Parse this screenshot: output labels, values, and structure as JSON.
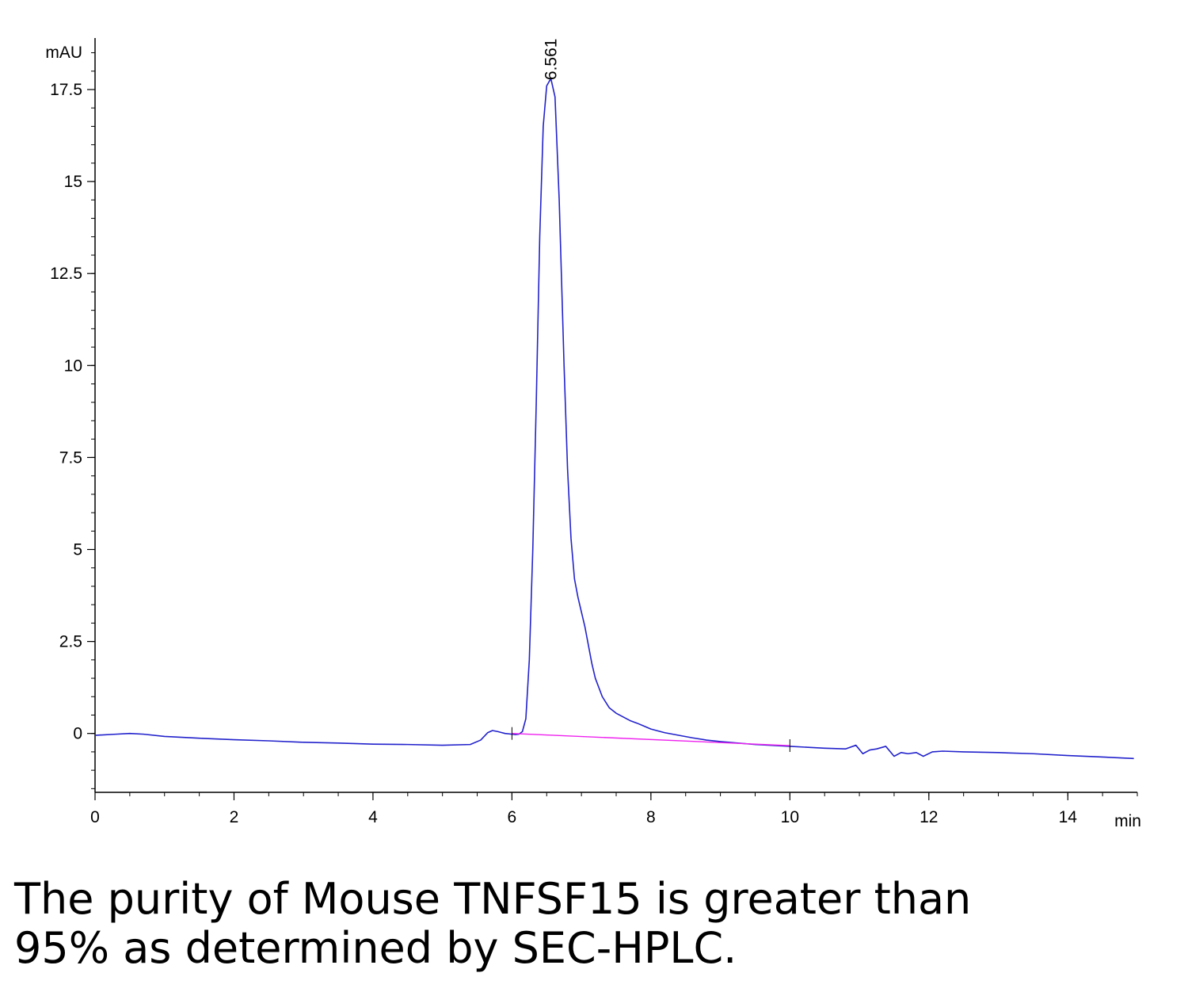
{
  "chart_data": {
    "type": "line",
    "title": "",
    "xlabel": "min",
    "ylabel": "mAU",
    "xlim": [
      0,
      15
    ],
    "ylim": [
      -1.6,
      18.9
    ],
    "x_ticks": [
      0,
      2,
      4,
      6,
      8,
      10,
      12,
      14
    ],
    "y_ticks": [
      0,
      2.5,
      5,
      7.5,
      10,
      12.5,
      15,
      17.5
    ],
    "x_tick_labels": [
      "0",
      "2",
      "4",
      "6",
      "8",
      "10",
      "12",
      "14"
    ],
    "y_tick_labels": [
      "0",
      "2.5",
      "5",
      "7.5",
      "10",
      "12.5",
      "15",
      "17.5"
    ],
    "grid": false,
    "series": [
      {
        "color": "#2222cc",
        "x": [
          0,
          0.3,
          0.5,
          0.7,
          1.0,
          1.5,
          2.0,
          2.5,
          3.0,
          3.5,
          4.0,
          4.5,
          5.0,
          5.4,
          5.55,
          5.65,
          5.72,
          5.8,
          5.9,
          6.0,
          6.05,
          6.1,
          6.15,
          6.2,
          6.25,
          6.3,
          6.35,
          6.4,
          6.45,
          6.5,
          6.56,
          6.62,
          6.68,
          6.75,
          6.8,
          6.85,
          6.9,
          6.95,
          7.0,
          7.05,
          7.1,
          7.15,
          7.2,
          7.3,
          7.4,
          7.5,
          7.6,
          7.7,
          7.8,
          7.9,
          8.0,
          8.2,
          8.4,
          8.6,
          8.8,
          9.0,
          9.5,
          10.0,
          10.5,
          10.8,
          10.95,
          11.05,
          11.15,
          11.25,
          11.38,
          11.5,
          11.6,
          11.7,
          11.82,
          11.92,
          12.05,
          12.2,
          12.5,
          13.0,
          13.5,
          14.0,
          14.5,
          14.95
        ],
        "y": [
          -0.05,
          -0.02,
          0.0,
          -0.02,
          -0.08,
          -0.13,
          -0.17,
          -0.2,
          -0.24,
          -0.26,
          -0.29,
          -0.3,
          -0.32,
          -0.3,
          -0.18,
          0.02,
          0.08,
          0.05,
          0.0,
          -0.02,
          -0.03,
          -0.02,
          0.05,
          0.4,
          2.0,
          5.0,
          9.0,
          13.5,
          16.5,
          17.6,
          17.8,
          17.3,
          14.5,
          10.0,
          7.2,
          5.3,
          4.2,
          3.7,
          3.3,
          2.9,
          2.4,
          1.9,
          1.5,
          1.0,
          0.7,
          0.55,
          0.45,
          0.35,
          0.28,
          0.2,
          0.12,
          0.02,
          -0.05,
          -0.12,
          -0.18,
          -0.22,
          -0.3,
          -0.35,
          -0.4,
          -0.42,
          -0.32,
          -0.55,
          -0.45,
          -0.42,
          -0.35,
          -0.62,
          -0.52,
          -0.55,
          -0.52,
          -0.62,
          -0.5,
          -0.48,
          -0.5,
          -0.52,
          -0.55,
          -0.6,
          -0.64,
          -0.68
        ]
      },
      {
        "color": "#ee22ee",
        "x": [
          6.0,
          10.0
        ],
        "y": [
          0.0,
          -0.33
        ]
      }
    ],
    "annotations": [
      {
        "text": "6.561",
        "x": 6.561,
        "y": 17.8
      }
    ]
  },
  "caption": {
    "line1": "The purity of Mouse TNFSF15 is greater than",
    "line2": "95% as determined by SEC-HPLC."
  }
}
